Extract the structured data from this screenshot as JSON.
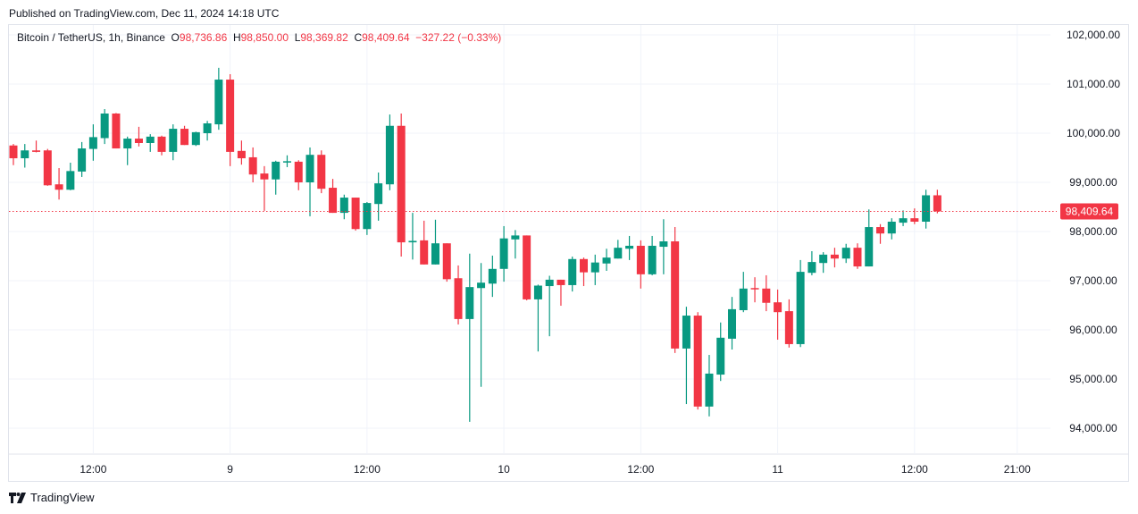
{
  "published": "Published on TradingView.com, Dec 11, 2024 14:18 UTC",
  "legend": {
    "symbol": "Bitcoin / TetherUS, 1h, Binance",
    "o_label": "O",
    "o_value": "98,736.86",
    "h_label": "H",
    "h_value": "98,850.00",
    "l_label": "L",
    "l_value": "98,369.82",
    "c_label": "C",
    "c_value": "98,409.64",
    "change": "−327.22 (−0.33%)"
  },
  "footer": {
    "brand": "TradingView",
    "logo_icon": "tradingview-logo-icon"
  },
  "colors": {
    "up": "#089981",
    "down": "#f23645",
    "grid": "#f0f3fa",
    "text": "#131722"
  },
  "chart_data": {
    "type": "candlestick",
    "title": "Bitcoin / TetherUS, 1h, Binance",
    "interval": "1h",
    "first_candle": "Dec 8 05:00",
    "ylim": [
      93500,
      102300
    ],
    "grid": true,
    "y_ticks": [
      {
        "value": 102000,
        "label": "102,000.00"
      },
      {
        "value": 101000,
        "label": "101,000.00"
      },
      {
        "value": 100000,
        "label": "100,000.00"
      },
      {
        "value": 99000,
        "label": "99,000.00"
      },
      {
        "value": 98000,
        "label": "98,000.00"
      },
      {
        "value": 97000,
        "label": "97,000.00"
      },
      {
        "value": 96000,
        "label": "96,000.00"
      },
      {
        "value": 95000,
        "label": "95,000.00"
      },
      {
        "value": 94000,
        "label": "94,000.00"
      }
    ],
    "x_ticks": [
      {
        "hour": 7,
        "label": "12:00"
      },
      {
        "hour": 19,
        "label": "9"
      },
      {
        "hour": 31,
        "label": "12:00"
      },
      {
        "hour": 43,
        "label": "10"
      },
      {
        "hour": 55,
        "label": "12:00"
      },
      {
        "hour": 67,
        "label": "11"
      },
      {
        "hour": 79,
        "label": "12:00"
      },
      {
        "hour": 88,
        "label": "21:00"
      }
    ],
    "x_range_hours": [
      -0.5,
      91
    ],
    "last_price": {
      "value": 98409.64,
      "label": "98,409.64"
    },
    "ohlc_fields": [
      "open",
      "high",
      "low",
      "close"
    ],
    "candles": [
      [
        99750,
        99780,
        99350,
        99490
      ],
      [
        99490,
        99780,
        99300,
        99650
      ],
      [
        99650,
        99850,
        99610,
        99620
      ],
      [
        99650,
        99680,
        98930,
        98940
      ],
      [
        98960,
        99290,
        98650,
        98850
      ],
      [
        98850,
        99400,
        98840,
        99230
      ],
      [
        99220,
        99820,
        99110,
        99690
      ],
      [
        99680,
        100180,
        99440,
        99920
      ],
      [
        99900,
        100490,
        99780,
        100400
      ],
      [
        100400,
        100410,
        99690,
        99690
      ],
      [
        99690,
        99930,
        99350,
        99890
      ],
      [
        99890,
        100130,
        99730,
        99800
      ],
      [
        99800,
        99980,
        99620,
        99930
      ],
      [
        99930,
        99950,
        99550,
        99620
      ],
      [
        99620,
        100180,
        99450,
        100090
      ],
      [
        100090,
        100150,
        99760,
        99760
      ],
      [
        99760,
        100030,
        99740,
        100020
      ],
      [
        100000,
        100250,
        99850,
        100200
      ],
      [
        100180,
        101330,
        100070,
        101090
      ],
      [
        101090,
        101200,
        99330,
        99620
      ],
      [
        99640,
        99850,
        99360,
        99490
      ],
      [
        99510,
        99710,
        99000,
        99160
      ],
      [
        99180,
        99330,
        98420,
        99060
      ],
      [
        99060,
        99440,
        98750,
        99420
      ],
      [
        99410,
        99550,
        99310,
        99430
      ],
      [
        99420,
        99450,
        98840,
        99000
      ],
      [
        99000,
        99710,
        98310,
        99560
      ],
      [
        99560,
        99650,
        98780,
        98870
      ],
      [
        98890,
        99070,
        98380,
        98380
      ],
      [
        98380,
        98750,
        98250,
        98690
      ],
      [
        98690,
        98690,
        98020,
        98050
      ],
      [
        98050,
        98600,
        97930,
        98580
      ],
      [
        98560,
        99200,
        98220,
        98980
      ],
      [
        98960,
        100380,
        98840,
        100150
      ],
      [
        100150,
        100400,
        97490,
        97780
      ],
      [
        97780,
        98380,
        97430,
        97810
      ],
      [
        97820,
        98220,
        97330,
        97330
      ],
      [
        97330,
        98240,
        97330,
        97760
      ],
      [
        97760,
        97760,
        96980,
        97030
      ],
      [
        97050,
        97310,
        96110,
        96220
      ],
      [
        96220,
        97550,
        94130,
        96870
      ],
      [
        96850,
        97360,
        94840,
        96960
      ],
      [
        96940,
        97510,
        96670,
        97240
      ],
      [
        97240,
        98110,
        96980,
        97860
      ],
      [
        97840,
        98030,
        97450,
        97920
      ],
      [
        97920,
        97920,
        96600,
        96620
      ],
      [
        96620,
        96920,
        95560,
        96900
      ],
      [
        96890,
        97100,
        95870,
        97020
      ],
      [
        97020,
        97020,
        96490,
        96910
      ],
      [
        96910,
        97490,
        96780,
        97440
      ],
      [
        97440,
        97470,
        96890,
        97170
      ],
      [
        97170,
        97530,
        96910,
        97370
      ],
      [
        97350,
        97650,
        97200,
        97470
      ],
      [
        97450,
        97830,
        97450,
        97670
      ],
      [
        97650,
        97910,
        97420,
        97710
      ],
      [
        97710,
        97820,
        96840,
        97130
      ],
      [
        97130,
        97910,
        97110,
        97710
      ],
      [
        97690,
        98250,
        97130,
        97800
      ],
      [
        97800,
        98090,
        95530,
        95620
      ],
      [
        95620,
        96470,
        94490,
        96290
      ],
      [
        96290,
        96360,
        94380,
        94440
      ],
      [
        94440,
        95490,
        94240,
        95110
      ],
      [
        95090,
        96150,
        94960,
        95840
      ],
      [
        95820,
        96670,
        95600,
        96420
      ],
      [
        96400,
        97180,
        96360,
        96840
      ],
      [
        96850,
        97070,
        96560,
        96830
      ],
      [
        96840,
        97110,
        96380,
        96550
      ],
      [
        96560,
        96820,
        95800,
        96360
      ],
      [
        96380,
        96620,
        95640,
        95710
      ],
      [
        95710,
        97420,
        95650,
        97180
      ],
      [
        97160,
        97600,
        97110,
        97380
      ],
      [
        97360,
        97580,
        97160,
        97530
      ],
      [
        97530,
        97670,
        97270,
        97450
      ],
      [
        97450,
        97750,
        97360,
        97670
      ],
      [
        97670,
        97760,
        97240,
        97290
      ],
      [
        97290,
        98450,
        97290,
        98090
      ],
      [
        98090,
        98150,
        97750,
        97960
      ],
      [
        97960,
        98270,
        97840,
        98200
      ],
      [
        98180,
        98430,
        98110,
        98270
      ],
      [
        98270,
        98470,
        98150,
        98200
      ],
      [
        98200,
        98850,
        98060,
        98736.86
      ],
      [
        98736.86,
        98850,
        98369.82,
        98409.64
      ]
    ]
  }
}
